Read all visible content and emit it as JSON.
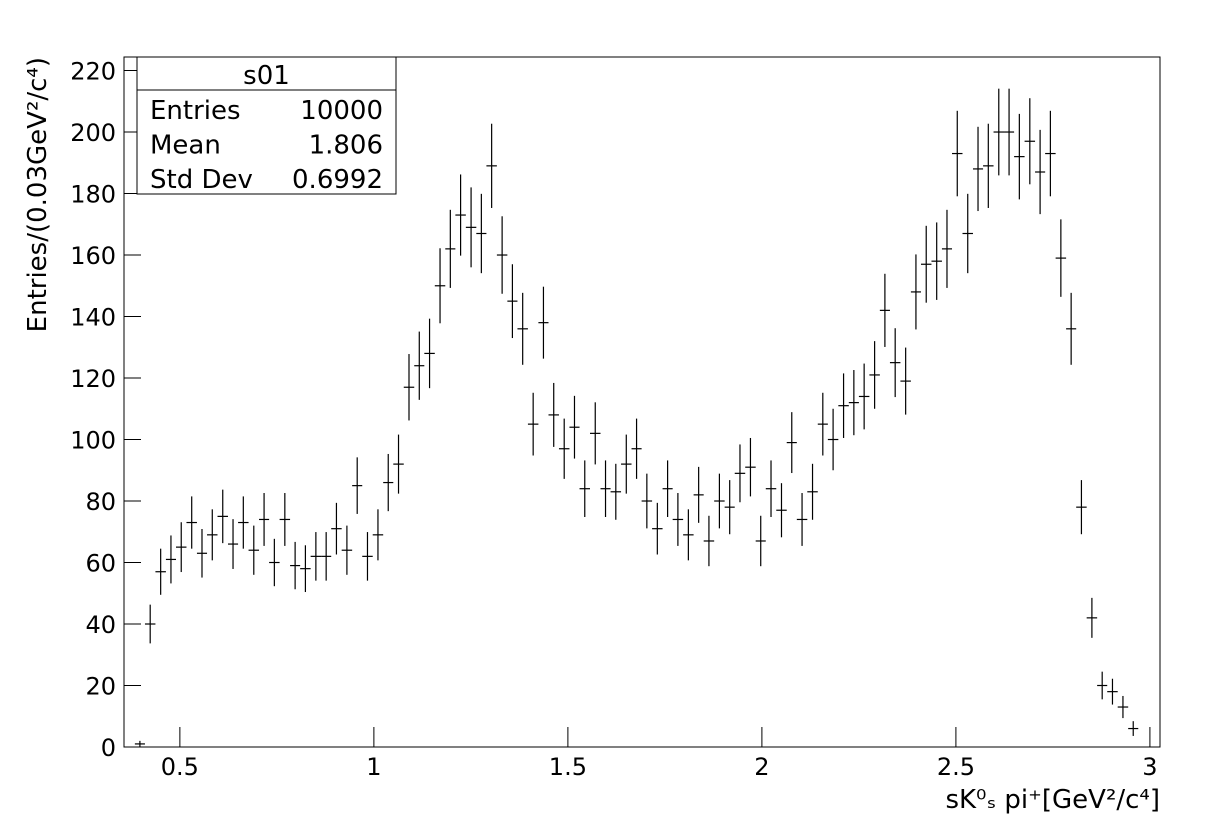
{
  "chart_data": {
    "type": "histogram",
    "x_label": "sK⁰ₛ pi⁺[GeV²/c⁴]",
    "y_label": "Entries/(0.03GeV²/c⁴)",
    "bins": [
      0.384,
      0.41,
      0.437,
      0.464,
      0.49,
      0.517,
      0.544,
      0.57,
      0.597,
      0.624,
      0.65,
      0.677,
      0.704,
      0.73,
      0.757,
      0.784,
      0.81,
      0.837,
      0.864,
      0.89,
      0.917,
      0.944,
      0.97,
      0.997,
      1.024,
      1.05,
      1.077,
      1.104,
      1.13,
      1.157,
      1.184,
      1.21,
      1.237,
      1.264,
      1.29,
      1.317,
      1.344,
      1.37,
      1.397,
      1.424,
      1.45,
      1.477,
      1.504,
      1.53,
      1.557,
      1.584,
      1.61,
      1.637,
      1.664,
      1.69,
      1.717,
      1.744,
      1.77,
      1.797,
      1.824,
      1.85,
      1.877,
      1.904,
      1.93,
      1.957,
      1.984,
      2.01,
      2.037,
      2.064,
      2.09,
      2.117,
      2.144,
      2.17,
      2.197,
      2.224,
      2.25,
      2.277,
      2.304,
      2.33,
      2.357,
      2.384,
      2.41,
      2.437,
      2.464,
      2.49,
      2.517,
      2.544,
      2.57,
      2.597,
      2.624,
      2.65,
      2.677,
      2.704,
      2.73,
      2.757,
      2.784,
      2.81,
      2.837,
      2.864,
      2.89,
      2.917,
      2.944,
      2.97
    ],
    "values": [
      1,
      40,
      57,
      61,
      65,
      73,
      63,
      69,
      75,
      66,
      73,
      64,
      74,
      60,
      74,
      59,
      58,
      62,
      62,
      71,
      64,
      85,
      62,
      69,
      86,
      92,
      117,
      124,
      128,
      150,
      162,
      173,
      169,
      167,
      189,
      160,
      145,
      136,
      105,
      138,
      108,
      97,
      104,
      84,
      102,
      84,
      83,
      92,
      97,
      80,
      71,
      84,
      74,
      69,
      82,
      67,
      80,
      78,
      89,
      91,
      67,
      84,
      77,
      99,
      74,
      83,
      105,
      100,
      111,
      112,
      114,
      121,
      142,
      125,
      119,
      148,
      157,
      158,
      162,
      193,
      167,
      188,
      189,
      200,
      200,
      192,
      197,
      187,
      193,
      159,
      136,
      78,
      42,
      20,
      18,
      13,
      6
    ],
    "errors": [
      1.0,
      6.3,
      7.5,
      7.8,
      8.1,
      8.5,
      7.9,
      8.3,
      8.7,
      8.1,
      8.5,
      8.0,
      8.6,
      7.7,
      8.6,
      7.7,
      7.6,
      7.9,
      7.9,
      8.4,
      8.0,
      9.2,
      7.9,
      8.3,
      9.3,
      9.6,
      10.8,
      11.1,
      11.3,
      12.2,
      12.7,
      13.2,
      13.0,
      12.9,
      13.7,
      12.6,
      12.0,
      11.7,
      10.2,
      11.7,
      10.4,
      9.8,
      10.2,
      9.2,
      10.1,
      9.2,
      9.1,
      9.6,
      9.8,
      8.9,
      8.4,
      9.2,
      8.6,
      8.3,
      9.1,
      8.2,
      8.9,
      8.8,
      9.4,
      9.5,
      8.2,
      9.2,
      8.8,
      9.9,
      8.6,
      9.1,
      10.2,
      10.0,
      10.5,
      10.6,
      10.7,
      11.0,
      11.9,
      11.2,
      10.9,
      12.2,
      12.5,
      12.6,
      12.7,
      13.9,
      12.9,
      13.7,
      13.7,
      14.1,
      14.1,
      13.9,
      14.0,
      13.7,
      13.9,
      12.6,
      11.7,
      8.8,
      6.5,
      4.5,
      4.2,
      3.6,
      2.4
    ],
    "color": "#000000",
    "xlim": [
      0.356,
      3.026
    ],
    "xticks": [
      0.5,
      1,
      1.5,
      2,
      2.5,
      3
    ],
    "ylim": [
      0,
      224.4
    ],
    "yticks": [
      0,
      20,
      40,
      60,
      80,
      100,
      120,
      140,
      160,
      180,
      200,
      220
    ],
    "stats_box": {
      "title": "s01",
      "rows": [
        [
          "Entries",
          "10000"
        ],
        [
          "Mean",
          "1.806"
        ],
        [
          "Std Dev",
          "0.6992"
        ]
      ]
    }
  }
}
